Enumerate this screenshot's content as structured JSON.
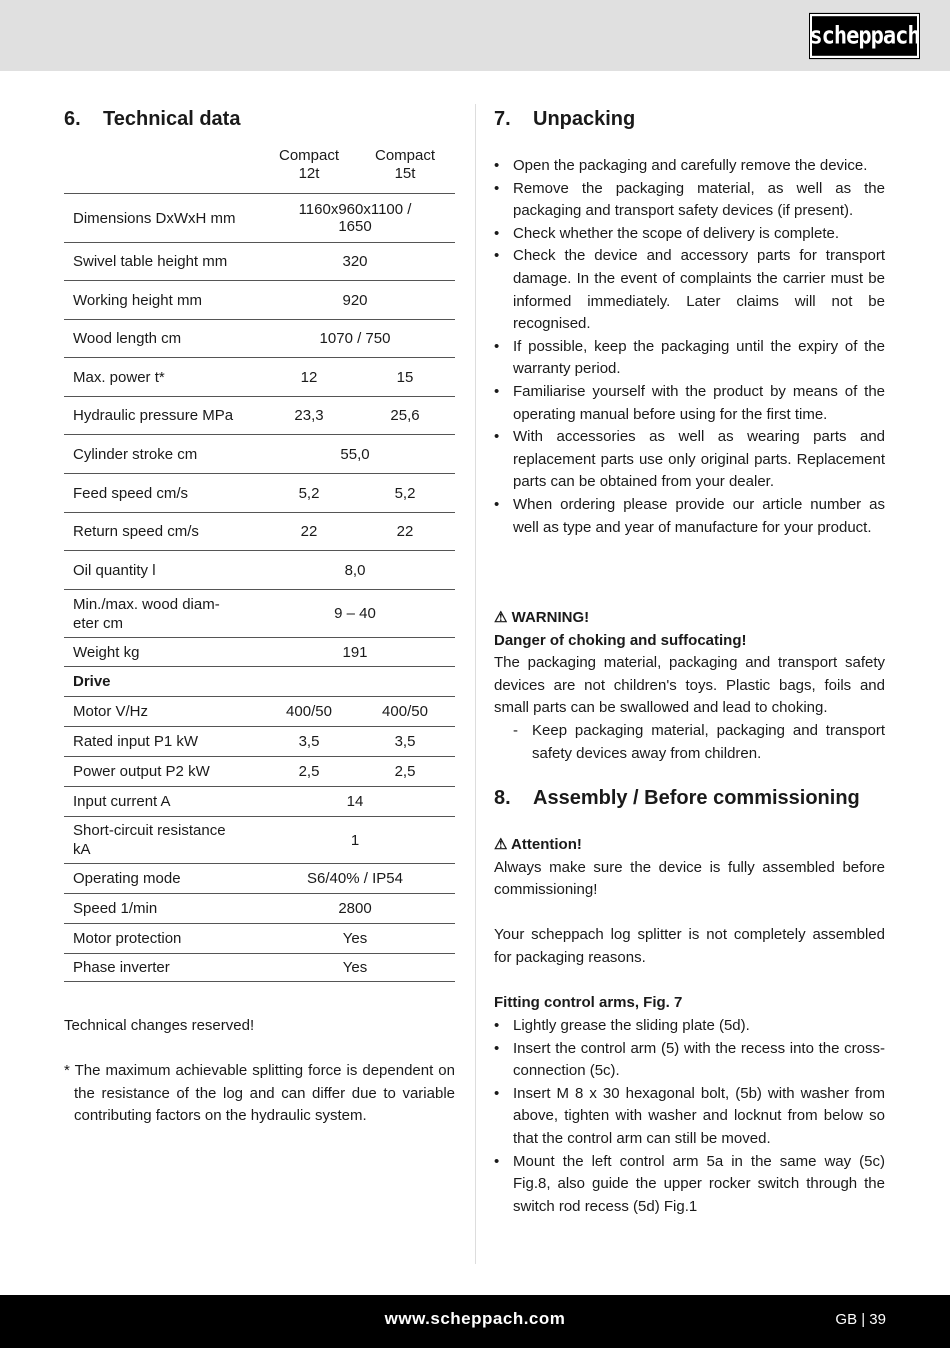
{
  "header": {
    "logo": "scheppach"
  },
  "footer": {
    "url": "www.scheppach.com",
    "page": "GB | 39"
  },
  "tech": {
    "num": "6.",
    "title": "Technical data",
    "col1": "Compact\n12t",
    "col2": "Compact\n15t",
    "rows": [
      {
        "label": "Dimensions DxWxH mm",
        "span": "1160x960x1100 / 1650"
      },
      {
        "label": "Swivel table height mm",
        "span": "320"
      },
      {
        "label": "Working height mm",
        "span": "920"
      },
      {
        "label": "Wood length cm",
        "span": "1070 / 750"
      },
      {
        "label": "Max. power t*",
        "v1": "12",
        "v2": "15"
      },
      {
        "label": "Hydraulic pressure MPa",
        "v1": "23,3",
        "v2": "25,6"
      },
      {
        "label": "Cylinder stroke cm",
        "span": "55,0"
      },
      {
        "label": "Feed speed cm/s",
        "v1": "5,2",
        "v2": "5,2"
      },
      {
        "label": "Return speed cm/s",
        "v1": "22",
        "v2": "22"
      },
      {
        "label": "Oil quantity l",
        "span": "8,0"
      },
      {
        "label": "Min./max. wood diam-\neter cm",
        "span": "9 – 40"
      },
      {
        "label": "Weight kg",
        "span": "191"
      },
      {
        "label": "Drive",
        "bold": true
      },
      {
        "label": "Motor V/Hz",
        "v1": "400/50",
        "v2": "400/50"
      },
      {
        "label": "Rated input P1 kW",
        "v1": "3,5",
        "v2": "3,5"
      },
      {
        "label": "Power output P2 kW",
        "v1": "2,5",
        "v2": "2,5"
      },
      {
        "label": "Input current A",
        "span": "14"
      },
      {
        "label": "Short-circuit resistance\nkA",
        "span": "1"
      },
      {
        "label": "Operating mode",
        "span": "S6/40% / IP54"
      },
      {
        "label": "Speed 1/min",
        "span": "2800"
      },
      {
        "label": "Motor protection",
        "span": "Yes"
      },
      {
        "label": "Phase inverter",
        "span": "Yes"
      }
    ],
    "changes": "Technical changes reserved!",
    "footnote": "* The maximum achievable splitting force is dependent on the resistance of the log and can differ due to variable contributing factors on the hydraulic system."
  },
  "unpacking": {
    "num": "7.",
    "title": "Unpacking",
    "bullets": [
      "Open the packaging and carefully remove the device.",
      "Remove the packaging material, as well as the packaging and transport safety devices (if present).",
      "Check whether the scope of delivery is complete.",
      "Check the device and accessory parts for transport damage. In the event of complaints the carrier must be informed immediately. Later claims will not be recognised.",
      "If possible, keep the packaging until the expiry of the warranty period.",
      "Familiarise yourself with the product by means of the operating manual before using for the first time.",
      "With accessories as well as wearing parts and replacement parts use only original parts. Replacement parts can be obtained from your dealer.",
      "When ordering please provide our article number as well as type and year of manufacture for your product."
    ],
    "warning_title": "⚠ WARNING!",
    "warning_sub": "Danger of choking and suffocating!",
    "warning_text": "The packaging material, packaging and transport safety devices are not children's toys. Plastic bags, foils and small parts can be swallowed and lead to choking.",
    "warning_dash": "Keep packaging material, packaging and transport safety devices away from children."
  },
  "assembly": {
    "num": "8.",
    "title": "Assembly / Before commissioning",
    "attention_title": "⚠ Attention!",
    "attention_text": "Always make sure the device is fully assembled before commissioning!",
    "note": "Your scheppach log splitter is not completely assembled for packaging reasons.",
    "fitting_title": "Fitting control arms, Fig. 7",
    "bullets": [
      "Lightly grease the sliding plate (5d).",
      "Insert the control arm (5) with the recess into the cross-connection (5c).",
      "Insert M 8 x 30 hexagonal bolt, (5b) with washer from above, tighten with washer and locknut from below so that the control arm can still be moved.",
      "Mount the left control arm 5a in the same way (5c) Fig.8, also guide the upper rocker switch through the switch rod recess (5d) Fig.1"
    ]
  }
}
